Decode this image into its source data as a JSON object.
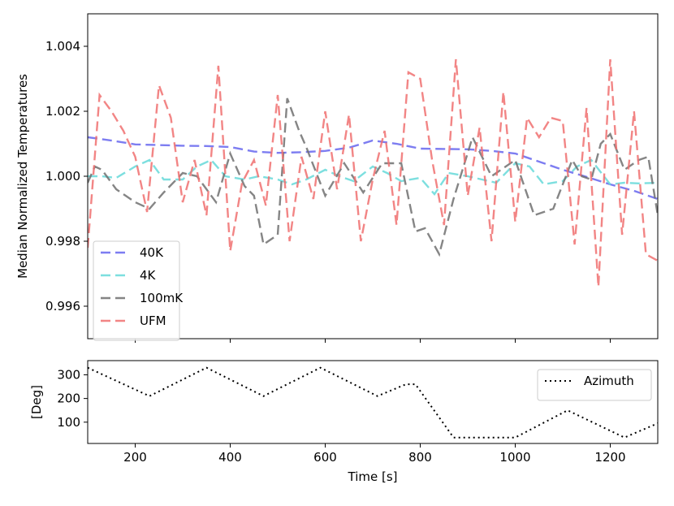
{
  "chart_data": [
    {
      "type": "line",
      "title": "",
      "xlabel": "",
      "ylabel": "Median Normalized Temperatures",
      "xlim": [
        100,
        1300
      ],
      "ylim": [
        0.995,
        1.005
      ],
      "yticks": [
        0.996,
        0.998,
        1.0,
        1.002,
        1.004
      ],
      "ytick_labels": [
        "0.996",
        "0.998",
        "1.000",
        "1.002",
        "1.004"
      ],
      "xticks": [
        200,
        400,
        600,
        800,
        1000,
        1200
      ],
      "legend_position": "lower-left",
      "series": [
        {
          "name": "40K",
          "color": "#6666ee",
          "dash": "dashed",
          "x": [
            100,
            150,
            200,
            250,
            300,
            350,
            400,
            450,
            500,
            550,
            600,
            650,
            700,
            750,
            800,
            850,
            900,
            950,
            1000,
            1050,
            1100,
            1150,
            1200,
            1250,
            1300
          ],
          "values": [
            1.0012,
            1.0011,
            1.00098,
            1.00096,
            1.00094,
            1.00093,
            1.0009,
            1.00076,
            1.00072,
            1.00074,
            1.00078,
            1.00088,
            1.0011,
            1.001,
            1.00085,
            1.00084,
            1.00083,
            1.00078,
            1.0007,
            1.00045,
            1.0002,
            0.99998,
            0.99975,
            0.99955,
            0.9993
          ]
        },
        {
          "name": "4K",
          "color": "#66d9d9",
          "dash": "dashed",
          "x": [
            100,
            130,
            160,
            200,
            230,
            260,
            300,
            330,
            360,
            390,
            430,
            460,
            500,
            530,
            560,
            600,
            630,
            660,
            700,
            730,
            760,
            800,
            830,
            860,
            900,
            930,
            960,
            1000,
            1030,
            1060,
            1100,
            1130,
            1160,
            1200,
            1230,
            1260,
            1300
          ],
          "values": [
            1.0,
            1.0,
            0.99995,
            1.0003,
            1.0005,
            0.9999,
            0.9999,
            1.0003,
            1.0005,
            1.0,
            0.9999,
            1.0,
            0.9999,
            0.99975,
            0.9999,
            1.0002,
            1.0,
            0.99985,
            1.0003,
            1.0001,
            0.99985,
            0.99995,
            0.99945,
            1.0001,
            1.0,
            0.9999,
            0.9998,
            1.0004,
            1.0003,
            0.99975,
            0.99985,
            1.0003,
            1.0005,
            0.99975,
            0.9998,
            0.99978,
            0.9998
          ]
        },
        {
          "name": "100mK",
          "color": "#707070",
          "dash": "dashed",
          "x": [
            100,
            115,
            130,
            160,
            180,
            200,
            230,
            260,
            300,
            330,
            370,
            400,
            430,
            450,
            470,
            500,
            520,
            545,
            560,
            600,
            640,
            680,
            720,
            760,
            790,
            810,
            840,
            870,
            910,
            950,
            1000,
            1040,
            1080,
            1120,
            1140,
            1160,
            1180,
            1200,
            1230,
            1260,
            1280,
            1300
          ],
          "values": [
            0.9998,
            1.0003,
            1.0002,
            0.9996,
            0.9994,
            0.9992,
            0.999,
            0.9995,
            1.0001,
            1.0,
            0.9992,
            1.0007,
            0.9997,
            0.9994,
            0.9979,
            0.9982,
            1.0024,
            1.0014,
            1.0009,
            0.9994,
            1.0004,
            0.9995,
            1.0004,
            1.0004,
            0.9983,
            0.9984,
            0.9976,
            0.9993,
            1.0012,
            1.0,
            1.0005,
            0.9988,
            0.999,
            1.0005,
            1.0,
            0.9999,
            1.001,
            1.0013,
            1.0002,
            1.0005,
            1.0006,
            0.9988
          ]
        },
        {
          "name": "UFM",
          "color": "#f07070",
          "dash": "dashed",
          "x": [
            100,
            125,
            150,
            175,
            200,
            225,
            250,
            275,
            300,
            325,
            350,
            375,
            400,
            425,
            450,
            475,
            500,
            525,
            550,
            575,
            600,
            625,
            650,
            675,
            700,
            725,
            750,
            775,
            800,
            825,
            850,
            875,
            900,
            925,
            950,
            975,
            1000,
            1025,
            1050,
            1075,
            1100,
            1125,
            1150,
            1175,
            1200,
            1225,
            1250,
            1275,
            1300
          ],
          "values": [
            0.9978,
            1.0025,
            1.002,
            1.0014,
            1.0006,
            0.9989,
            1.0028,
            1.0018,
            0.9992,
            1.0005,
            0.9988,
            1.0034,
            0.9977,
            0.9998,
            1.0005,
            0.9991,
            1.0025,
            0.998,
            1.0006,
            0.9993,
            1.002,
            0.9996,
            1.0019,
            0.998,
            0.9999,
            1.0014,
            0.9985,
            1.0032,
            1.003,
            1.0005,
            0.9985,
            1.0036,
            0.9994,
            1.0015,
            0.998,
            1.0026,
            0.9986,
            1.0018,
            1.0012,
            1.0018,
            1.0017,
            0.9979,
            1.0021,
            0.9966,
            1.0036,
            0.9982,
            1.002,
            0.9976,
            0.9974
          ]
        }
      ]
    },
    {
      "type": "line",
      "title": "",
      "xlabel": "Time [s]",
      "ylabel": "[Deg]",
      "xlim": [
        100,
        1300
      ],
      "ylim": [
        10,
        360
      ],
      "yticks": [
        100,
        200,
        300
      ],
      "ytick_labels": [
        "100",
        "200",
        "300"
      ],
      "xticks": [
        200,
        400,
        600,
        800,
        1000,
        1200
      ],
      "xtick_labels": [
        "200",
        "400",
        "600",
        "800",
        "1000",
        "1200"
      ],
      "legend_position": "top-right",
      "series": [
        {
          "name": "Azimuth",
          "color": "#000000",
          "dash": "dotted",
          "x": [
            100,
            230,
            350,
            470,
            590,
            710,
            770,
            790,
            870,
            1000,
            1110,
            1230,
            1300
          ],
          "values": [
            330,
            210,
            330,
            210,
            330,
            210,
            260,
            260,
            35,
            35,
            150,
            35,
            95
          ]
        }
      ]
    }
  ]
}
